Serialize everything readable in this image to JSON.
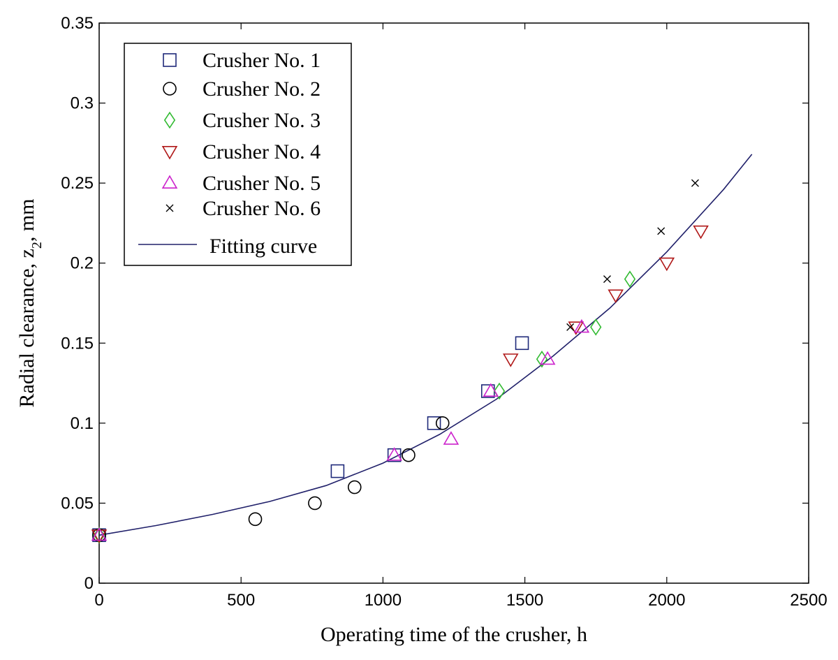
{
  "chart_data": {
    "type": "scatter",
    "xlabel": "Operating time of the crusher, h",
    "ylabel": "Radial clearance, z2, mm",
    "xlim": [
      0,
      2500
    ],
    "ylim": [
      0,
      0.35
    ],
    "xticks": [
      0,
      500,
      1000,
      1500,
      2000,
      2500
    ],
    "yticks": [
      0,
      0.05,
      0.1,
      0.15,
      0.2,
      0.25,
      0.3,
      0.35
    ],
    "xtick_labels": [
      "0",
      "500",
      "1000",
      "1500",
      "2000",
      "2500"
    ],
    "ytick_labels": [
      "0",
      "0.05",
      "0.1",
      "0.15",
      "0.2",
      "0.25",
      "0.3",
      "0.35"
    ],
    "grid": false,
    "legend_position": "top-left",
    "series": [
      {
        "name": "Crusher No. 1",
        "marker": "square",
        "color": "#1f2a7a",
        "points": [
          [
            0,
            0.03
          ],
          [
            840,
            0.07
          ],
          [
            1040,
            0.08
          ],
          [
            1180,
            0.1
          ],
          [
            1370,
            0.12
          ],
          [
            1490,
            0.15
          ]
        ]
      },
      {
        "name": "Crusher No. 2",
        "marker": "circle",
        "color": "#000000",
        "points": [
          [
            0,
            0.03
          ],
          [
            550,
            0.04
          ],
          [
            760,
            0.05
          ],
          [
            900,
            0.06
          ],
          [
            1090,
            0.08
          ],
          [
            1210,
            0.1
          ]
        ]
      },
      {
        "name": "Crusher No. 3",
        "marker": "diamond",
        "color": "#33bb33",
        "points": [
          [
            0,
            0.03
          ],
          [
            1410,
            0.12
          ],
          [
            1560,
            0.14
          ],
          [
            1750,
            0.16
          ],
          [
            1870,
            0.19
          ]
        ]
      },
      {
        "name": "Crusher No. 4",
        "marker": "triangle-down",
        "color": "#b01818",
        "points": [
          [
            0,
            0.03
          ],
          [
            1450,
            0.14
          ],
          [
            1680,
            0.16
          ],
          [
            1820,
            0.18
          ],
          [
            2000,
            0.2
          ],
          [
            2120,
            0.22
          ]
        ]
      },
      {
        "name": "Crusher No. 5",
        "marker": "triangle-up",
        "color": "#cc22cc",
        "points": [
          [
            0,
            0.03
          ],
          [
            1040,
            0.08
          ],
          [
            1240,
            0.09
          ],
          [
            1380,
            0.12
          ],
          [
            1580,
            0.14
          ],
          [
            1700,
            0.16
          ]
        ]
      },
      {
        "name": "Crusher No. 6",
        "marker": "x",
        "color": "#000000",
        "points": [
          [
            1660,
            0.16
          ],
          [
            1790,
            0.19
          ],
          [
            1980,
            0.22
          ],
          [
            2100,
            0.25
          ]
        ]
      }
    ],
    "fit": {
      "name": "Fitting curve",
      "color": "#20206a",
      "points": [
        [
          0,
          0.03
        ],
        [
          200,
          0.036
        ],
        [
          400,
          0.043
        ],
        [
          600,
          0.051
        ],
        [
          800,
          0.061
        ],
        [
          1000,
          0.075
        ],
        [
          1200,
          0.093
        ],
        [
          1400,
          0.115
        ],
        [
          1600,
          0.142
        ],
        [
          1800,
          0.172
        ],
        [
          2000,
          0.207
        ],
        [
          2200,
          0.246
        ],
        [
          2300,
          0.268
        ]
      ]
    }
  }
}
